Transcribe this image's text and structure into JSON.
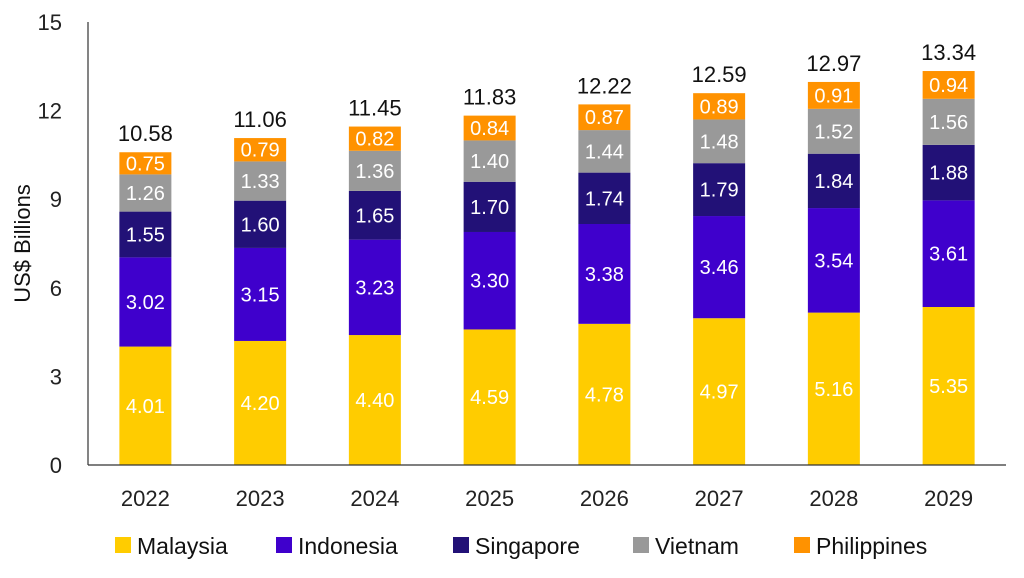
{
  "chart_data": {
    "type": "bar",
    "stacked": true,
    "title": "",
    "xlabel": "",
    "ylabel": "US$ Billions",
    "ylim": [
      0,
      15
    ],
    "yticks": [
      "0",
      "3",
      "6",
      "9",
      "12",
      "15"
    ],
    "grid": false,
    "legend_position": "bottom",
    "categories": [
      "2022",
      "2023",
      "2024",
      "2025",
      "2026",
      "2027",
      "2028",
      "2029"
    ],
    "totals": [
      "10.58",
      "11.06",
      "11.45",
      "11.83",
      "12.22",
      "12.59",
      "12.97",
      "13.34"
    ],
    "series": [
      {
        "name": "Malaysia",
        "color": "#FFCC00",
        "label_color": "#FFFFFF",
        "values": [
          4.01,
          4.2,
          4.4,
          4.59,
          4.78,
          4.97,
          5.16,
          5.35
        ],
        "labels": [
          "4.01",
          "4.20",
          "4.40",
          "4.59",
          "4.78",
          "4.97",
          "5.16",
          "5.35"
        ]
      },
      {
        "name": "Indonesia",
        "color": "#3F00CC",
        "label_color": "#FFFFFF",
        "values": [
          3.02,
          3.15,
          3.23,
          3.3,
          3.38,
          3.46,
          3.54,
          3.61
        ],
        "labels": [
          "3.02",
          "3.15",
          "3.23",
          "3.30",
          "3.38",
          "3.46",
          "3.54",
          "3.61"
        ]
      },
      {
        "name": "Singapore",
        "color": "#221177",
        "label_color": "#FFFFFF",
        "values": [
          1.55,
          1.6,
          1.65,
          1.7,
          1.74,
          1.79,
          1.84,
          1.88
        ],
        "labels": [
          "1.55",
          "1.60",
          "1.65",
          "1.70",
          "1.74",
          "1.79",
          "1.84",
          "1.88"
        ]
      },
      {
        "name": "Vietnam",
        "color": "#999999",
        "label_color": "#FFFFFF",
        "values": [
          1.26,
          1.33,
          1.36,
          1.4,
          1.44,
          1.48,
          1.52,
          1.56
        ],
        "labels": [
          "1.26",
          "1.33",
          "1.36",
          "1.40",
          "1.44",
          "1.48",
          "1.52",
          "1.56"
        ]
      },
      {
        "name": "Philippines",
        "color": "#FF9200",
        "label_color": "#FFFFFF",
        "values": [
          0.75,
          0.79,
          0.82,
          0.84,
          0.87,
          0.89,
          0.91,
          0.94
        ],
        "labels": [
          "0.75",
          "0.79",
          "0.82",
          "0.84",
          "0.87",
          "0.89",
          "0.91",
          "0.94"
        ]
      }
    ]
  }
}
